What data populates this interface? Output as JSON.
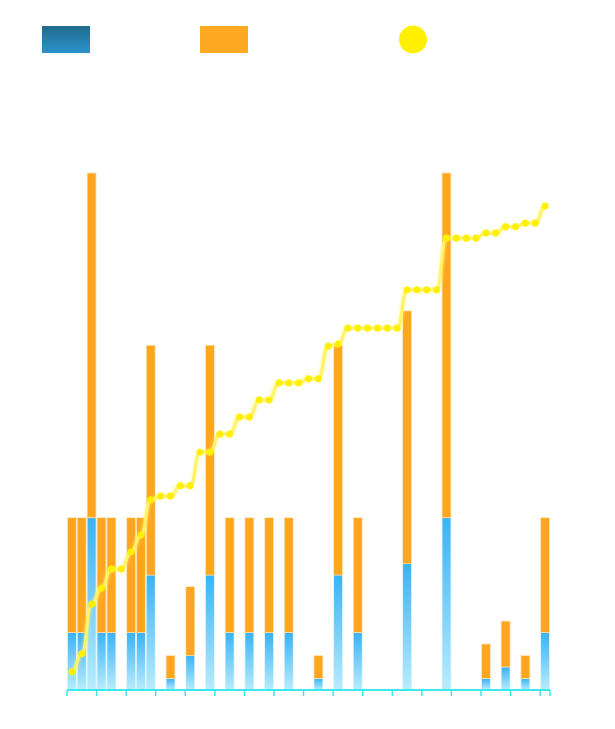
{
  "chart_data": {
    "type": "bar",
    "stacked": true,
    "title": "",
    "xlabel": "",
    "ylabel": "",
    "ylim": [
      0,
      9
    ],
    "y2lim": [
      0,
      100
    ],
    "grid": false,
    "legend": "top-left",
    "colors": {
      "series1": "#2a8fc7",
      "series1_bar_top": "#3ab2f5",
      "series1_bar_bottom": "#b8ecfd",
      "series2": "#ffa620",
      "line": "#fff000",
      "axis": "#3de8ea"
    },
    "series": [
      {
        "kind": "bar",
        "values": [
          1,
          1,
          3,
          1,
          1,
          0,
          1,
          1,
          2,
          0,
          0.2,
          0,
          0.6,
          0,
          2,
          0,
          1,
          0,
          1,
          0,
          1,
          0,
          1,
          0,
          0,
          0.2,
          0,
          2,
          0,
          1,
          0,
          0,
          0,
          0,
          2.2,
          0,
          0,
          0,
          3,
          0,
          0,
          0,
          0.2,
          0,
          0.4,
          0,
          0.2,
          0,
          1
        ]
      },
      {
        "kind": "bar",
        "values": [
          2,
          2,
          6,
          2,
          2,
          0,
          2,
          2,
          4,
          0,
          0.4,
          0,
          1.2,
          0,
          4,
          0,
          2,
          0,
          2,
          0,
          2,
          0,
          2,
          0,
          0,
          0.4,
          0,
          4,
          0,
          2,
          0,
          0,
          0,
          0,
          4.4,
          0,
          0,
          0,
          6,
          0,
          0,
          0,
          0.6,
          0,
          0.8,
          0,
          0.4,
          0,
          2
        ]
      },
      {
        "kind": "line",
        "axis": "right",
        "values": [
          3.5,
          7.0,
          16.6,
          19.7,
          23.4,
          23.4,
          26.7,
          30.0,
          36.8,
          37.5,
          37.5,
          39.5,
          39.5,
          46.0,
          46.0,
          49.5,
          49.5,
          52.8,
          52.8,
          56.1,
          56.1,
          59.4,
          59.4,
          59.4,
          60.2,
          60.2,
          66.5,
          66.9,
          70.0,
          70.0,
          70.0,
          70.0,
          70.0,
          70.0,
          77.4,
          77.4,
          77.4,
          77.4,
          87.4,
          87.4,
          87.4,
          87.4,
          88.4,
          88.4,
          89.6,
          89.6,
          90.3,
          90.3,
          93.6
        ]
      }
    ]
  }
}
